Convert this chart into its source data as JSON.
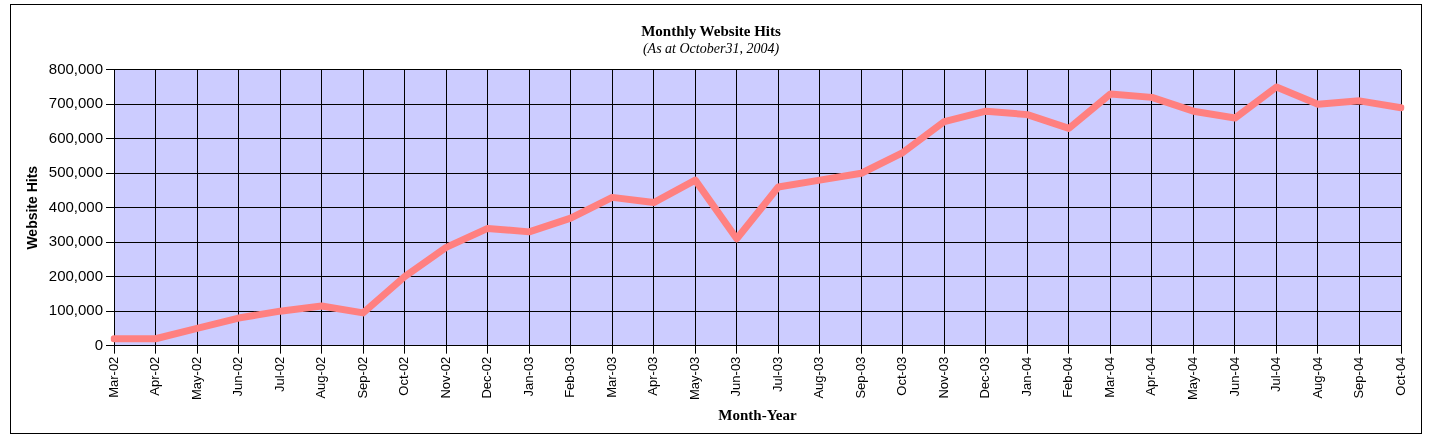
{
  "chart_data": {
    "type": "line",
    "title": "Monthly Website Hits",
    "subtitle": "(As at October31, 2004)",
    "xlabel": "Month-Year",
    "ylabel": "Website Hits",
    "categories": [
      "Mar-02",
      "Apr-02",
      "May-02",
      "Jun-02",
      "Jul-02",
      "Aug-02",
      "Sep-02",
      "Oct-02",
      "Nov-02",
      "Dec-02",
      "Jan-03",
      "Feb-03",
      "Mar-03",
      "Apr-03",
      "May-03",
      "Jun-03",
      "Jul-03",
      "Aug-03",
      "Sep-03",
      "Oct-03",
      "Nov-03",
      "Dec-03",
      "Jan-04",
      "Feb-04",
      "Mar-04",
      "Apr-04",
      "May-04",
      "Jun-04",
      "Jul-04",
      "Aug-04",
      "Sep-04",
      "Oct-04"
    ],
    "series": [
      {
        "color": "#ff8080",
        "values": [
          20000,
          20000,
          50000,
          80000,
          100000,
          115000,
          95000,
          200000,
          285000,
          340000,
          330000,
          370000,
          430000,
          415000,
          480000,
          310000,
          460000,
          480000,
          500000,
          560000,
          650000,
          680000,
          670000,
          630000,
          730000,
          720000,
          680000,
          660000,
          750000,
          700000,
          710000,
          690000
        ]
      }
    ],
    "ylim": [
      0,
      800000
    ],
    "yticks": [
      {
        "value": 0,
        "label": "0"
      },
      {
        "value": 100000,
        "label": "100,000"
      },
      {
        "value": 200000,
        "label": "200,000"
      },
      {
        "value": 300000,
        "label": "300,000"
      },
      {
        "value": 400000,
        "label": "400,000"
      },
      {
        "value": 500000,
        "label": "500,000"
      },
      {
        "value": 600000,
        "label": "600,000"
      },
      {
        "value": 700000,
        "label": "700,000"
      },
      {
        "value": 800000,
        "label": "800,000"
      }
    ],
    "grid": true,
    "legend": false,
    "marker": "none",
    "line_style": "solid"
  }
}
